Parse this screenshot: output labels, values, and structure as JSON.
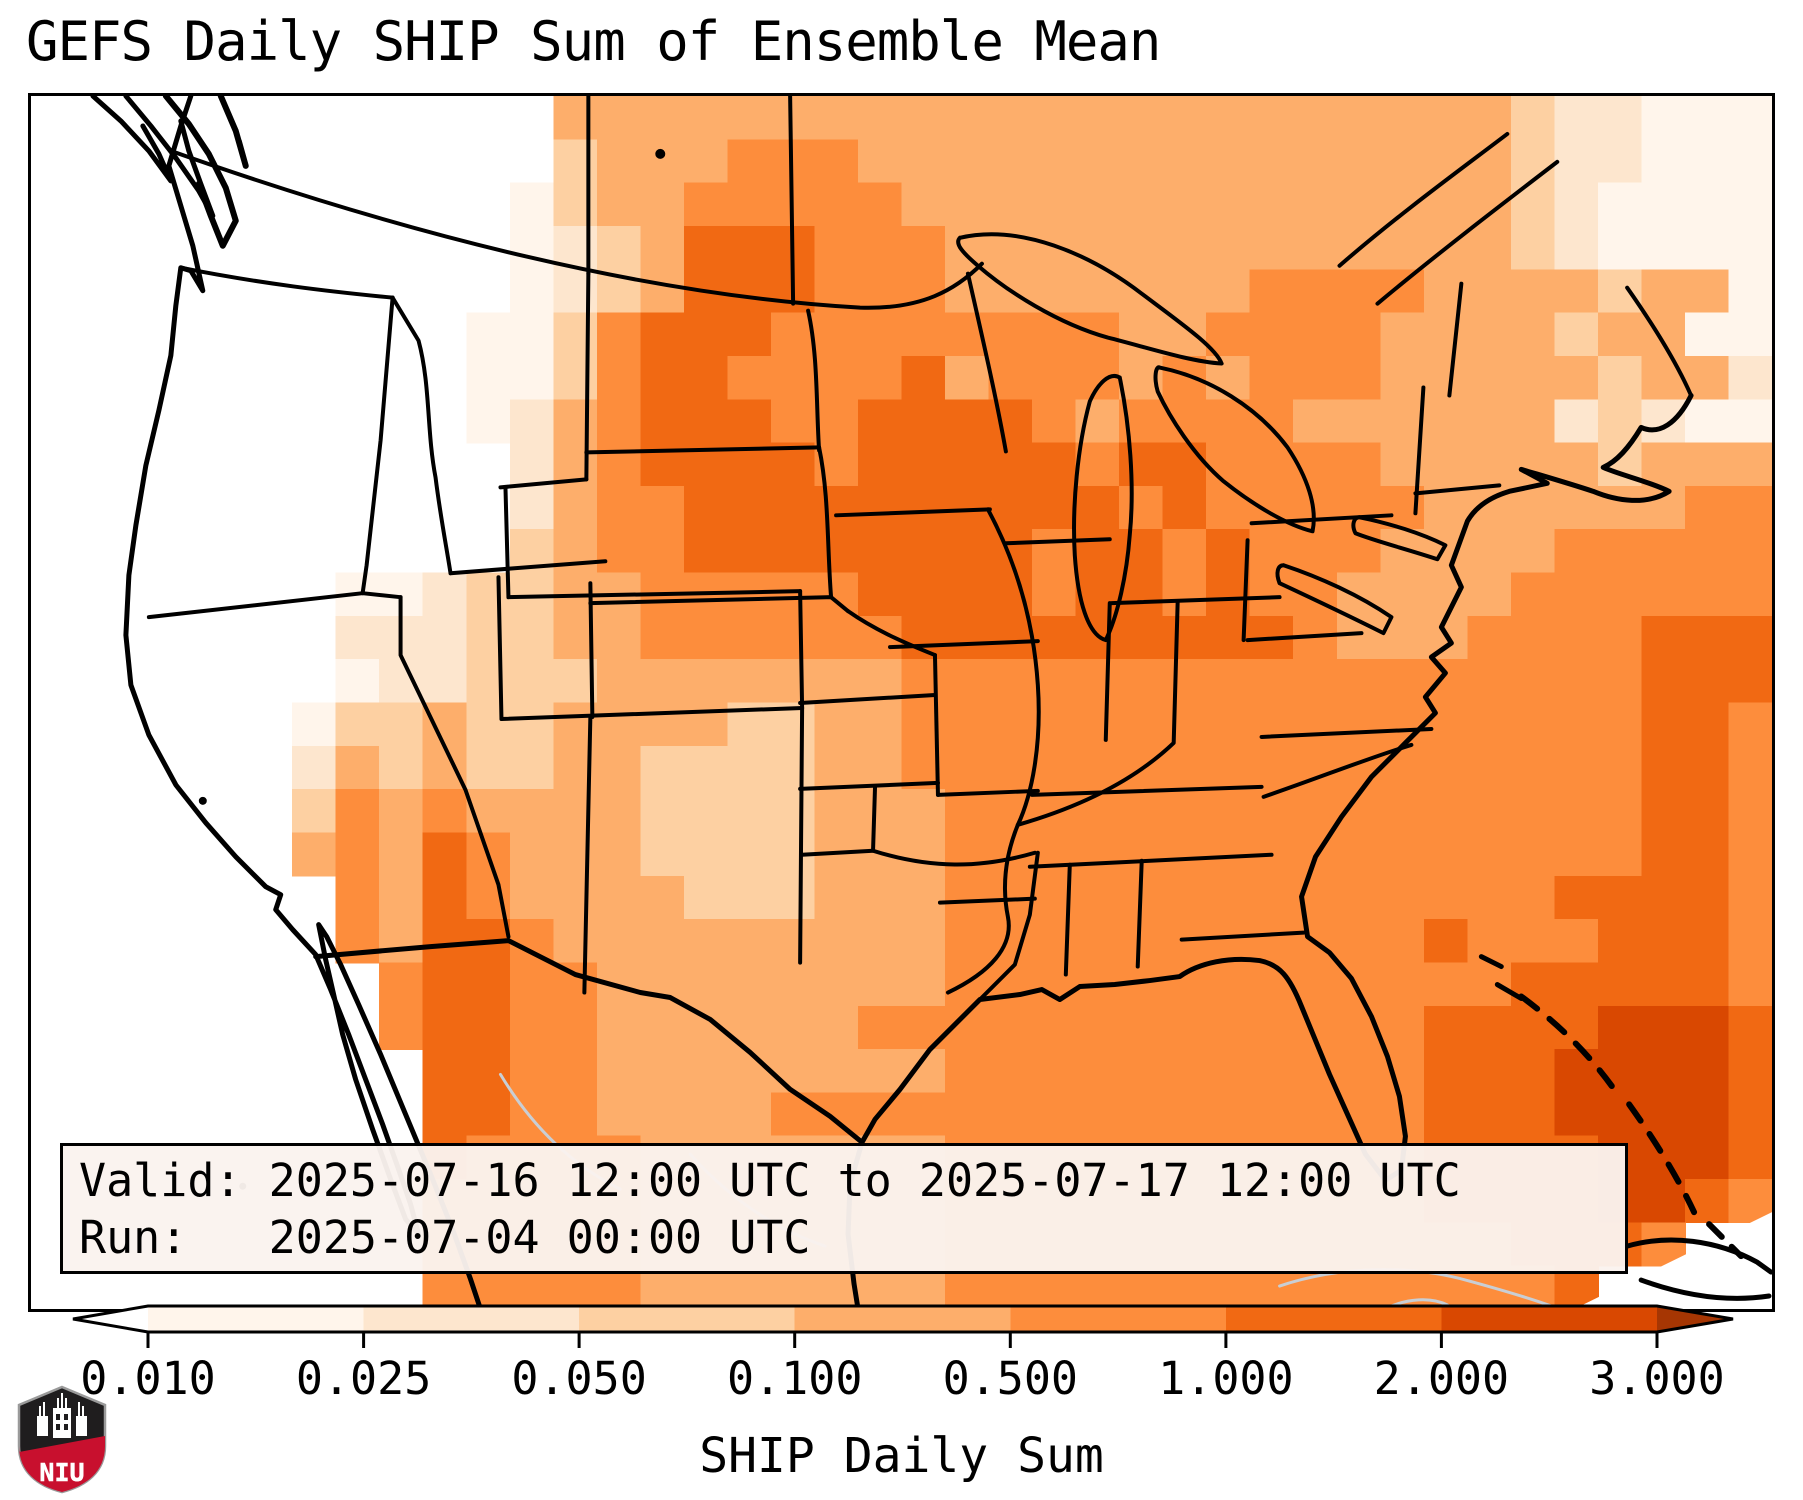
{
  "title": "GEFS Daily SHIP Sum of Ensemble Mean",
  "info_box": {
    "valid": "Valid: 2025-07-16 12:00 UTC to 2025-07-17 12:00 UTC",
    "run": "Run:   2025-07-04 00:00 UTC"
  },
  "colorbar": {
    "label": "SHIP Daily Sum",
    "ticks": [
      "0.010",
      "0.025",
      "0.050",
      "0.100",
      "0.500",
      "1.000",
      "2.000",
      "3.000"
    ],
    "segment_colors": [
      "#fff5eb",
      "#fde6ce",
      "#fdd0a2",
      "#fdae6b",
      "#fd8d3c",
      "#f16913",
      "#d94801"
    ],
    "under_arrow_color": "#ffffff",
    "over_arrow_color": "#a63603",
    "outline_color": "#000000"
  },
  "logo": {
    "label": "NIU",
    "shield_color": "#1f1d1e",
    "band_color": "#c8102e"
  },
  "chart_data": {
    "type": "heatmap",
    "title": "GEFS Daily SHIP Sum of Ensemble Mean",
    "colorbar_label": "SHIP Daily Sum",
    "valid_period": "2025-07-16 12:00 UTC to 2025-07-17 12:00 UTC",
    "run_time": "2025-07-04 00:00 UTC",
    "levels": [
      0.01,
      0.025,
      0.05,
      0.1,
      0.5,
      1.0,
      2.0,
      3.0
    ],
    "palette": [
      "#ffffff",
      "#fff5eb",
      "#fde6ce",
      "#fdd0a2",
      "#fdae6b",
      "#fd8d3c",
      "#f16913",
      "#d94801"
    ],
    "over_color": "#a63603",
    "grid_legend": "28 rows x 40 cols over CONUS map; each digit 0-7 indexes palette (0 = below 0.010 / no data; band upper bounds follow levels[])",
    "grid": [
      "0000000000004444444444444444444444322111",
      "0000000000003444555444444444444444322111",
      "0000000000013445555544444444444444321111",
      "0000000000012346665554444444444444321111",
      "0000000000012346665554444444555544443441",
      "0000000000113566655555555445555444434411",
      "0000000000113566555564555454555444443442",
      "0000000000124566655666654555544444423211",
      "0000000000024566665666665665555444443444",
      "0000000000024556666666666565555544444455",
      "0000000000034556666666656656555444455555",
      "0000000112334455555666656656554444555555",
      "0000000222334455555566666666654445555666",
      "0000000122333444444455555555555555555666",
      "0000001334334444334455555555555555555665",
      "0000002434334433334455555555555555555665",
      "0000003545444433334445555555555555555665",
      "0000004546544433334445555555555555555665",
      "0000000546544443334445555555555555566665",
      "0000000546654444444445555555555565556665",
      "0000000056655444444445555555555555666665",
      "0000000056655444444555555555555566667776",
      "0000000006655444444445555555555566677776",
      "0000000006655444455555555555555566677776",
      "0000000006555544444445555555555566667776",
      "0000000005555544444445555555555566667765",
      "0000000005555544444445555555555555666500",
      "0000000005555544444445555555555555560000"
    ]
  }
}
